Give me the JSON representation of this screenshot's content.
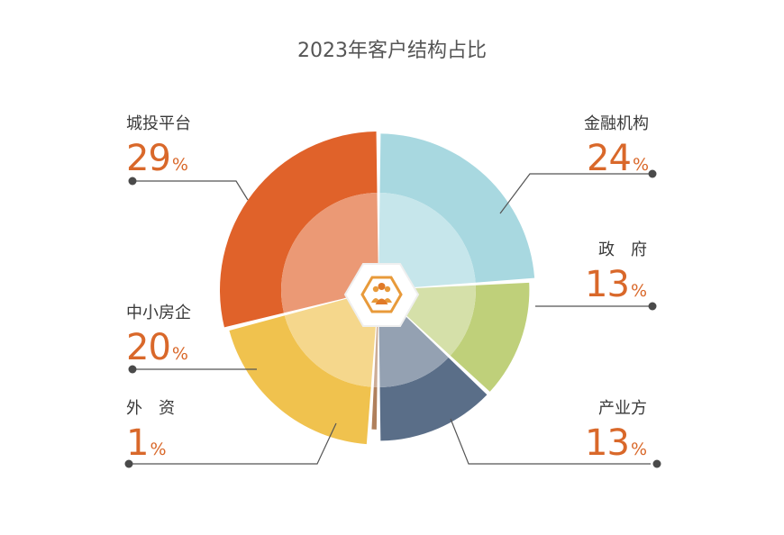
{
  "chart_data": {
    "type": "pie",
    "style": "rose-donut",
    "title": "2023年客户结构占比",
    "unit": "%",
    "slices": [
      {
        "name": "金融机构",
        "value": 24,
        "color": "#a8d8e0"
      },
      {
        "name": "政　府",
        "value": 13,
        "color": "#bfd07a"
      },
      {
        "name": "产业方",
        "value": 13,
        "color": "#5a6e88"
      },
      {
        "name": "外　资",
        "value": 1,
        "color": "#b0805c"
      },
      {
        "name": "中小房企",
        "value": 20,
        "color": "#f0c24e"
      },
      {
        "name": "城投平台",
        "value": 29,
        "color": "#e0622a"
      }
    ],
    "center_icon": "customer-group-icon",
    "label_color": "#d9682a"
  }
}
